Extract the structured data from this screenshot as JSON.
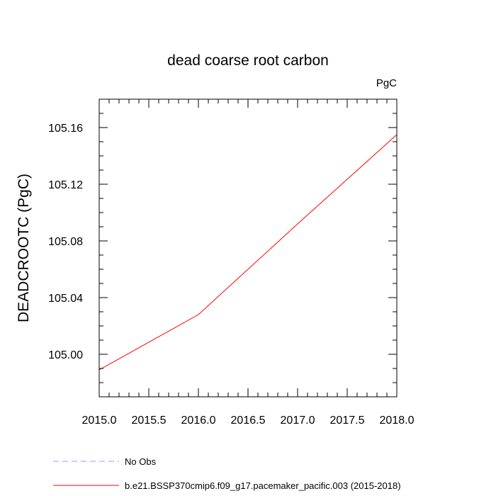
{
  "chart_data": {
    "type": "line",
    "title": "dead coarse root carbon",
    "units": "PgC",
    "ylabel": "DEADCROOTC  (PgC)",
    "xlabel": "",
    "xlim": [
      2015.0,
      2018.0
    ],
    "ylim": [
      104.97,
      105.18
    ],
    "x_ticks": [
      2015.0,
      2015.5,
      2016.0,
      2016.5,
      2017.0,
      2017.5,
      2018.0
    ],
    "x_tick_labels": [
      "2015.0",
      "2015.5",
      "2016.0",
      "2016.5",
      "2017.0",
      "2017.5",
      "2018.0"
    ],
    "y_ticks": [
      105.0,
      105.04,
      105.08,
      105.12,
      105.16
    ],
    "y_tick_labels": [
      "105.00",
      "105.04",
      "105.08",
      "105.12",
      "105.16"
    ],
    "grid": false,
    "legend_position": "bottom",
    "series": [
      {
        "name": "No Obs",
        "color": "#9999ff",
        "dash": "dashed",
        "x": [],
        "y": []
      },
      {
        "name": "b.e21.BSSP370cmip6.f09_g17.pacemaker_pacific.003 (2015-2018)",
        "color": "#ff0000",
        "dash": "solid",
        "x": [
          2015.0,
          2016.0,
          2017.0,
          2018.0
        ],
        "y": [
          104.989,
          105.028,
          105.092,
          105.155
        ]
      }
    ]
  }
}
